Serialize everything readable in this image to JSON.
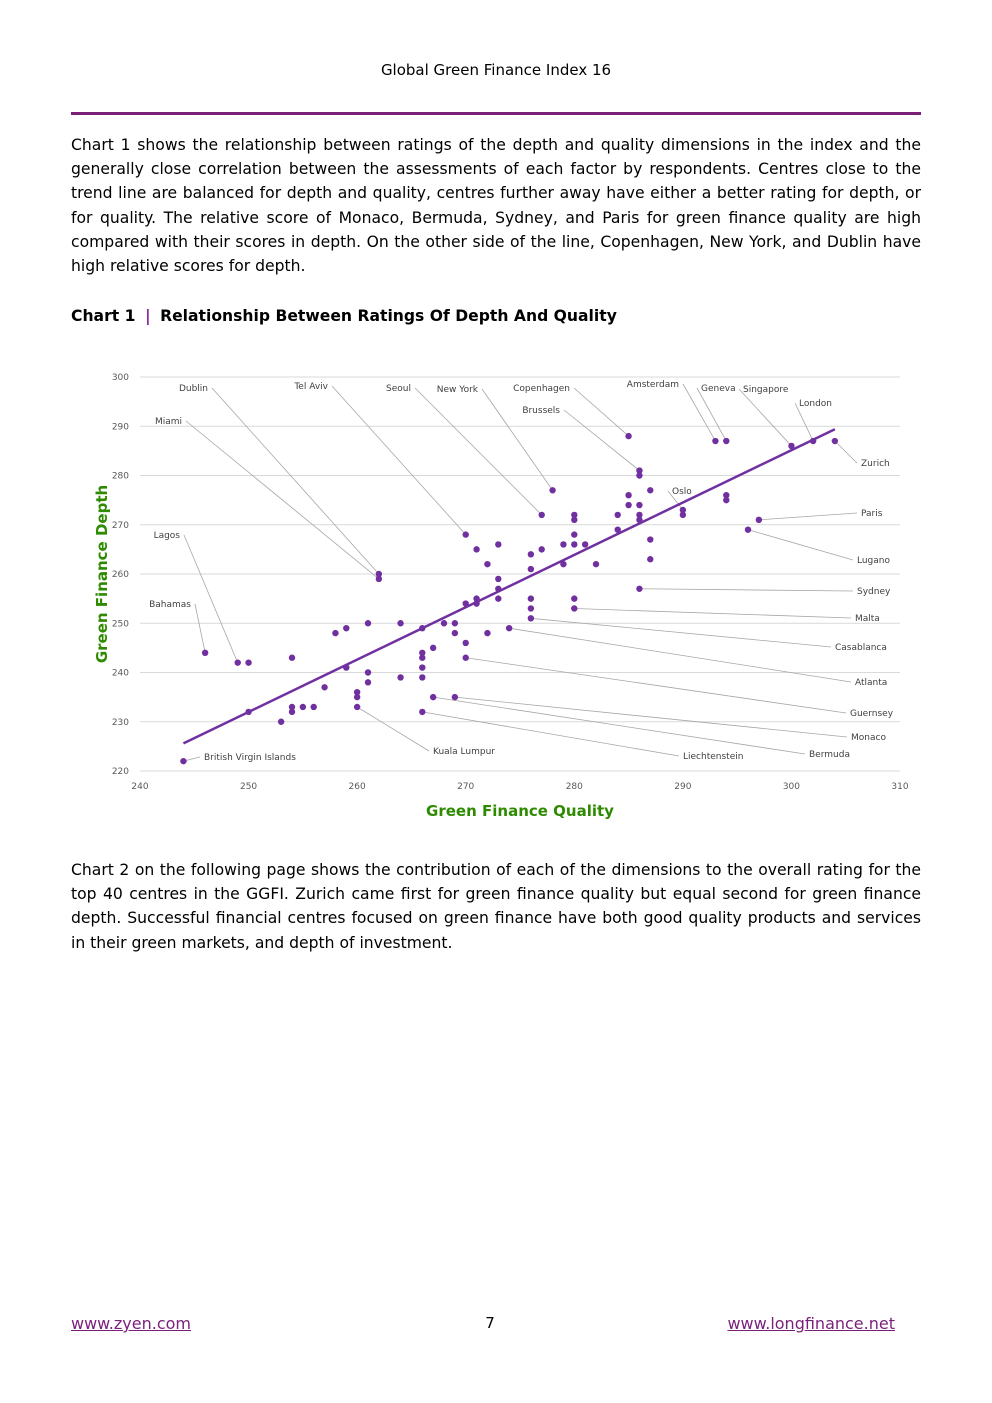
{
  "header": {
    "title": "Global Green Finance Index 16"
  },
  "paragraphs": {
    "p1": "Chart 1 shows the relationship between ratings of the depth and quality dimensions in the index and the generally close correlation between the assessments of each factor by respondents. Centres close to the trend line are balanced for depth and quality, centres further away have either a better rating for depth, or for quality. The relative score of Monaco, Bermuda, Sydney, and Paris for green finance quality are high compared with their scores in depth. On the other side of the line, Copenhagen, New York, and Dublin have high relative scores for depth.",
    "p2": "Chart 2 on the following page shows the contribution of each of the dimensions to the overall rating for the top 40 centres in the GGFI. Zurich came first for green finance quality but equal second for green finance depth. Successful financial centres focused on green finance have both good quality products and services in their green markets, and depth of investment."
  },
  "chart_heading": {
    "label": "Chart 1",
    "separator": "|",
    "title": "Relationship Between Ratings Of Depth And Quality"
  },
  "colors": {
    "accent": "#7a1f7a",
    "points": "#7030a0",
    "axis_title": "#2e8b00",
    "separator": "#8b2b9b"
  },
  "chart_data": {
    "type": "scatter",
    "xlabel": "Green Finance Quality",
    "ylabel": "Green Finance Depth",
    "xlim": [
      240,
      310
    ],
    "ylim": [
      220,
      300
    ],
    "xticks": [
      240,
      250,
      260,
      270,
      280,
      290,
      300,
      310
    ],
    "yticks": [
      220,
      230,
      240,
      250,
      260,
      270,
      280,
      290,
      300
    ],
    "grid": true,
    "trendline": {
      "x": [
        244,
        304
      ],
      "y": [
        225.6,
        289.4
      ]
    },
    "points": [
      [
        244,
        222
      ],
      [
        246,
        244
      ],
      [
        249,
        242
      ],
      [
        250,
        242
      ],
      [
        250,
        232
      ],
      [
        253,
        230
      ],
      [
        254,
        232
      ],
      [
        254,
        233
      ],
      [
        254,
        243
      ],
      [
        255,
        233
      ],
      [
        256,
        233
      ],
      [
        257,
        237
      ],
      [
        258,
        248
      ],
      [
        259,
        241
      ],
      [
        259,
        249
      ],
      [
        260,
        236
      ],
      [
        260,
        235
      ],
      [
        260,
        233
      ],
      [
        261,
        250
      ],
      [
        261,
        240
      ],
      [
        261,
        238
      ],
      [
        262,
        260
      ],
      [
        262,
        259
      ],
      [
        264,
        250
      ],
      [
        264,
        239
      ],
      [
        266,
        249
      ],
      [
        266,
        244
      ],
      [
        266,
        243
      ],
      [
        266,
        241
      ],
      [
        266,
        239
      ],
      [
        266,
        232
      ],
      [
        267,
        245
      ],
      [
        267,
        235
      ],
      [
        268,
        250
      ],
      [
        269,
        250
      ],
      [
        269,
        248
      ],
      [
        269,
        235
      ],
      [
        270,
        268
      ],
      [
        270,
        254
      ],
      [
        270,
        246
      ],
      [
        270,
        243
      ],
      [
        271,
        265
      ],
      [
        271,
        255
      ],
      [
        271,
        254
      ],
      [
        272,
        262
      ],
      [
        272,
        248
      ],
      [
        273,
        266
      ],
      [
        273,
        259
      ],
      [
        273,
        257
      ],
      [
        273,
        255
      ],
      [
        274,
        249
      ],
      [
        276,
        264
      ],
      [
        276,
        261
      ],
      [
        276,
        255
      ],
      [
        276,
        253
      ],
      [
        276,
        251
      ],
      [
        277,
        272
      ],
      [
        277,
        265
      ],
      [
        278,
        277
      ],
      [
        279,
        266
      ],
      [
        279,
        262
      ],
      [
        280,
        272
      ],
      [
        280,
        271
      ],
      [
        280,
        268
      ],
      [
        280,
        266
      ],
      [
        280,
        255
      ],
      [
        280,
        253
      ],
      [
        281,
        266
      ],
      [
        282,
        262
      ],
      [
        284,
        272
      ],
      [
        284,
        269
      ],
      [
        285,
        276
      ],
      [
        285,
        274
      ],
      [
        285,
        288
      ],
      [
        286,
        281
      ],
      [
        286,
        280
      ],
      [
        286,
        274
      ],
      [
        286,
        272
      ],
      [
        286,
        271
      ],
      [
        286,
        257
      ],
      [
        287,
        277
      ],
      [
        287,
        267
      ],
      [
        287,
        263
      ],
      [
        290,
        273
      ],
      [
        290,
        272
      ],
      [
        293,
        287
      ],
      [
        294,
        287
      ],
      [
        294,
        276
      ],
      [
        294,
        275
      ],
      [
        296,
        269
      ],
      [
        297,
        271
      ],
      [
        300,
        286
      ],
      [
        302,
        287
      ],
      [
        304,
        287
      ]
    ],
    "annotations": [
      {
        "label": "British Virgin Islands",
        "x": 244,
        "y": 222
      },
      {
        "label": "Bahamas",
        "x": 246,
        "y": 244
      },
      {
        "label": "Lagos",
        "x": 249,
        "y": 242
      },
      {
        "label": "Miami",
        "x": 262,
        "y": 259
      },
      {
        "label": "Dublin",
        "x": 262,
        "y": 260
      },
      {
        "label": "Tel Aviv",
        "x": 270,
        "y": 268
      },
      {
        "label": "Seoul",
        "x": 277,
        "y": 272
      },
      {
        "label": "New York",
        "x": 278,
        "y": 277
      },
      {
        "label": "Copenhagen",
        "x": 285,
        "y": 288
      },
      {
        "label": "Brussels",
        "x": 286,
        "y": 281
      },
      {
        "label": "Amsterdam",
        "x": 293,
        "y": 287
      },
      {
        "label": "Geneva",
        "x": 294,
        "y": 287
      },
      {
        "label": "Singapore",
        "x": 300,
        "y": 286
      },
      {
        "label": "London",
        "x": 302,
        "y": 287
      },
      {
        "label": "Zurich",
        "x": 304,
        "y": 287
      },
      {
        "label": "Oslo",
        "x": 290,
        "y": 273
      },
      {
        "label": "Paris",
        "x": 297,
        "y": 271
      },
      {
        "label": "Lugano",
        "x": 296,
        "y": 269
      },
      {
        "label": "Sydney",
        "x": 286,
        "y": 257
      },
      {
        "label": "Malta",
        "x": 280,
        "y": 253
      },
      {
        "label": "Casablanca",
        "x": 276,
        "y": 251
      },
      {
        "label": "Atlanta",
        "x": 274,
        "y": 249
      },
      {
        "label": "Guernsey",
        "x": 270,
        "y": 243
      },
      {
        "label": "Monaco",
        "x": 269,
        "y": 235
      },
      {
        "label": "Bermuda",
        "x": 267,
        "y": 235
      },
      {
        "label": "Liechtenstein",
        "x": 266,
        "y": 232
      },
      {
        "label": "Kuala Lumpur",
        "x": 260,
        "y": 233
      }
    ]
  },
  "footer": {
    "left_link": "www.zyen.com",
    "page_number": "7",
    "right_link": "www.longfinance.net"
  }
}
